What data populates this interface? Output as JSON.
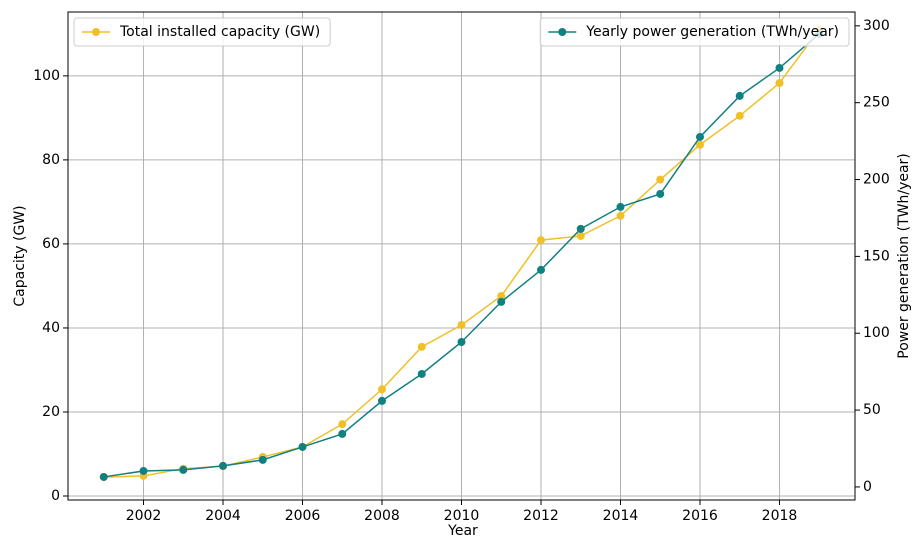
{
  "chart_data": {
    "type": "line",
    "xlabel": "Year",
    "ylabel": "Capacity (GW)",
    "y2label": "Power generation (TWh/year)",
    "x": [
      2001,
      2002,
      2003,
      2004,
      2005,
      2006,
      2007,
      2008,
      2009,
      2010,
      2011,
      2012,
      2013,
      2014,
      2015,
      2016,
      2017,
      2018,
      2019
    ],
    "series": [
      {
        "name": "Total installed capacity (GW)",
        "color": "#f0c029",
        "axis": "y",
        "legend_loc": "upper left",
        "values": [
          4.5,
          4.8,
          6.5,
          7.1,
          9.3,
          11.7,
          17.1,
          25.4,
          35.5,
          40.7,
          47.6,
          60.9,
          61.9,
          66.7,
          75.3,
          83.6,
          90.5,
          98.3,
          111
        ]
      },
      {
        "name": "Yearly power generation (TWh/year)",
        "color": "#108080",
        "axis": "y2",
        "legend_loc": "upper right",
        "values": [
          6.5,
          10.4,
          11.1,
          13.7,
          17.6,
          26.0,
          34.5,
          56.0,
          73.5,
          94.3,
          120.4,
          141.2,
          167.9,
          182.2,
          190.6,
          227.7,
          254.4,
          272.6,
          294.7
        ]
      }
    ],
    "xlim": [
      2000.1,
      2019.9
    ],
    "xticks": [
      2002,
      2004,
      2006,
      2008,
      2010,
      2012,
      2014,
      2016,
      2018
    ],
    "ylim": [
      -0.95,
      115.2
    ],
    "yticks": [
      0,
      20,
      40,
      60,
      80,
      100
    ],
    "y2lim": [
      -8.5,
      309
    ],
    "y2ticks": [
      0,
      50,
      100,
      150,
      200,
      250,
      300
    ],
    "grid": true
  }
}
